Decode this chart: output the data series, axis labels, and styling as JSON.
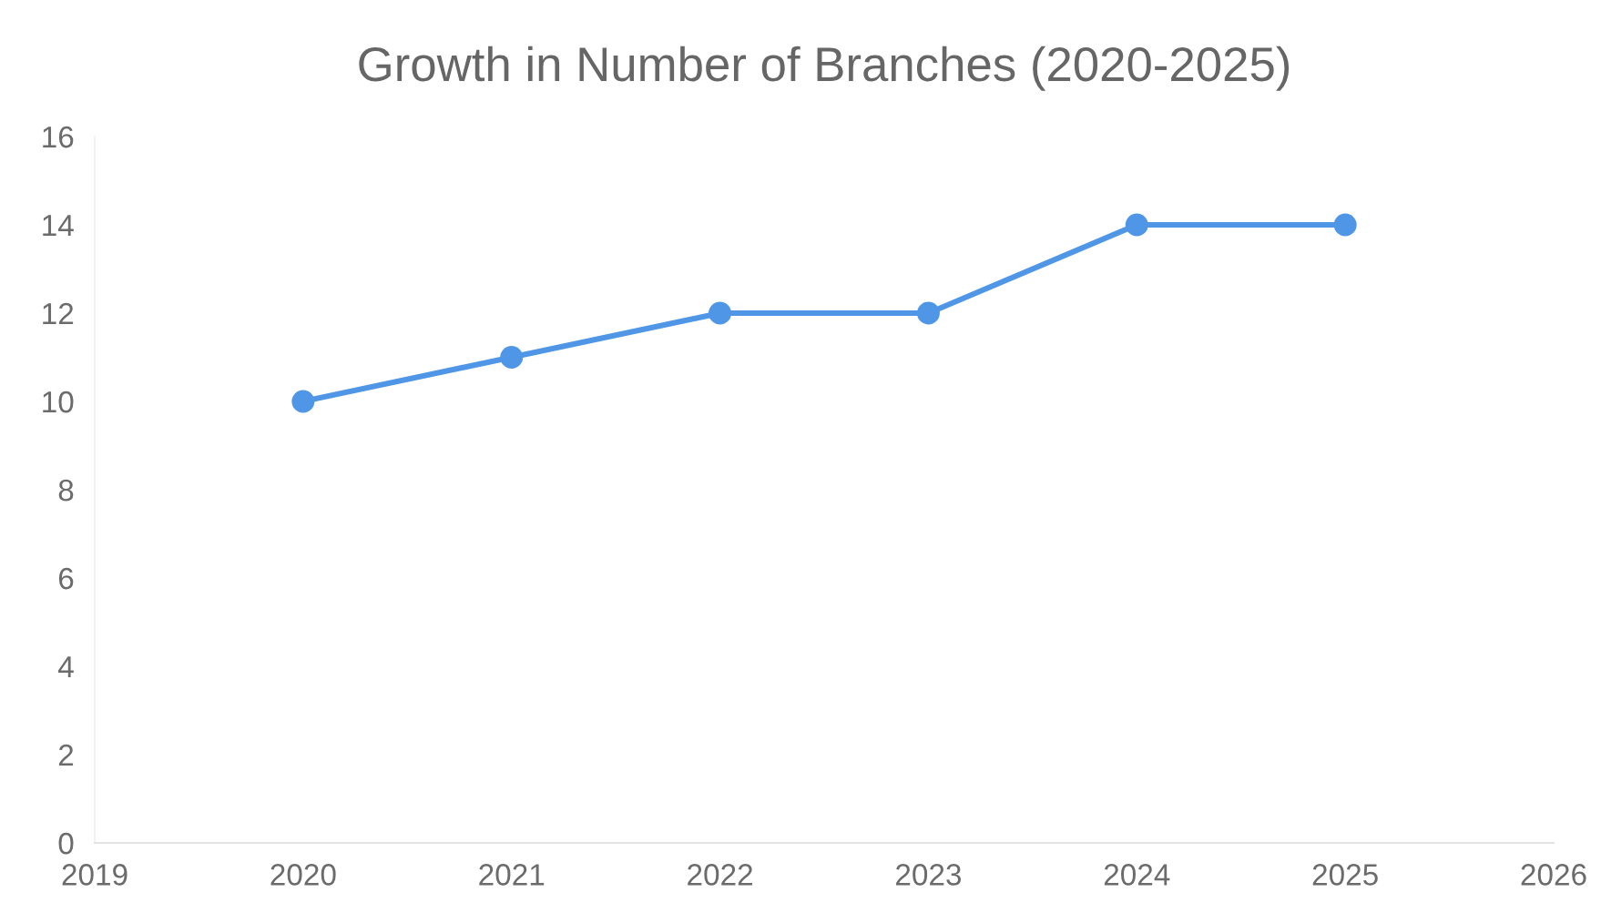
{
  "chart_data": {
    "type": "line",
    "title": "Growth in Number of Branches (2020-2025)",
    "x": [
      2020,
      2021,
      2022,
      2023,
      2024,
      2025
    ],
    "series": [
      {
        "color": "#4f96e6",
        "values": [
          10,
          11,
          12,
          12,
          14,
          14
        ]
      }
    ],
    "xlim": [
      2019,
      2026
    ],
    "xticks": [
      2019,
      2020,
      2021,
      2022,
      2023,
      2024,
      2025,
      2026
    ],
    "ylim": [
      0,
      16
    ],
    "yticks": [
      0,
      2,
      4,
      6,
      8,
      10,
      12,
      14,
      16
    ],
    "marker": "circle",
    "line_style": "solid",
    "grid": false,
    "legend": false
  }
}
